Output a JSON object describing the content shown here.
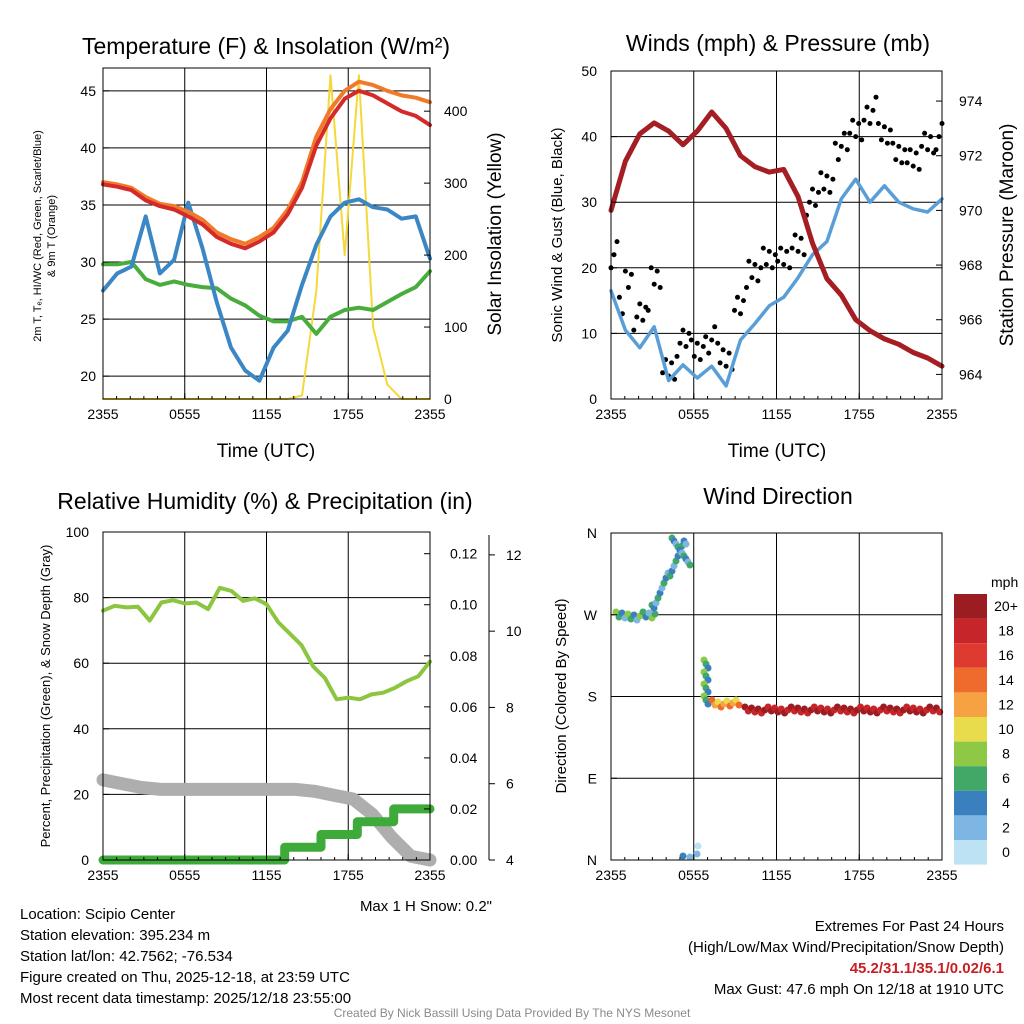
{
  "chart_data": [
    {
      "id": "temperature",
      "type": "line",
      "title": "Temperature (F) & Insolation (W/m²)",
      "xlabel": "Time (UTC)",
      "ylabel_lines": [
        "2m T, Tₑ, HI/WC (Red, Green, Scarlet/Blue)",
        "& 9m T (Orange)"
      ],
      "y2label": "Solar Insolation (Yellow)",
      "x_tick_labels": [
        "2355",
        "0555",
        "1155",
        "1755",
        "2355"
      ],
      "y_ticks": [
        20,
        25,
        30,
        35,
        40,
        45
      ],
      "y2_ticks": [
        0,
        100,
        200,
        300,
        400
      ],
      "ylim": [
        18,
        47
      ],
      "y2lim": [
        0,
        460
      ],
      "series": [
        {
          "name": "9m Temperature",
          "color": "#f07a2a",
          "axis": "left",
          "values": [
            37.0,
            36.8,
            36.5,
            35.7,
            35.1,
            34.9,
            34.4,
            33.7,
            32.6,
            32.0,
            31.6,
            32.2,
            33.0,
            34.6,
            37.0,
            41.0,
            43.4,
            45.0,
            45.8,
            45.5,
            45.0,
            44.6,
            44.4,
            44.0
          ]
        },
        {
          "name": "2m Temperature",
          "color": "#d42a2a",
          "axis": "left",
          "values": [
            36.8,
            36.6,
            36.3,
            35.4,
            34.9,
            34.6,
            34.0,
            33.3,
            32.2,
            31.6,
            31.2,
            31.8,
            32.6,
            34.2,
            36.5,
            40.2,
            42.6,
            44.3,
            45.0,
            44.6,
            43.9,
            43.2,
            42.8,
            42.0
          ]
        },
        {
          "name": "Wind Chill",
          "color": "#3b87c5",
          "axis": "left",
          "values": [
            27.5,
            29.0,
            29.6,
            34.0,
            29.0,
            30.2,
            35.2,
            31.2,
            26.5,
            22.5,
            20.5,
            19.6,
            22.5,
            24.0,
            28.0,
            31.5,
            34.0,
            35.2,
            35.5,
            34.8,
            34.6,
            33.8,
            34.0,
            30.3
          ]
        },
        {
          "name": "Dew Point",
          "color": "#48ad3d",
          "axis": "left",
          "values": [
            29.8,
            29.8,
            30.0,
            28.5,
            28.0,
            28.3,
            28.0,
            27.8,
            27.7,
            26.8,
            26.2,
            25.3,
            24.8,
            24.8,
            25.2,
            23.7,
            25.2,
            25.8,
            26.0,
            25.8,
            26.5,
            27.2,
            27.8,
            29.2
          ]
        },
        {
          "name": "Solar Insolation",
          "color": "#f5d83a",
          "axis": "right",
          "values": [
            0,
            0,
            0,
            0,
            0,
            0,
            0,
            0,
            0,
            0,
            0,
            0,
            0,
            0,
            5,
            150,
            450,
            200,
            450,
            100,
            20,
            0,
            0,
            0
          ]
        }
      ]
    },
    {
      "id": "winds",
      "type": "line",
      "title": "Winds (mph) & Pressure (mb)",
      "xlabel": "Time (UTC)",
      "ylabel": "Sonic Wind & Gust (Blue, Black)",
      "y2label": "Station Pressure (Maroon)",
      "x_tick_labels": [
        "2355",
        "0555",
        "1155",
        "1755",
        "2355"
      ],
      "y_ticks": [
        0,
        10,
        20,
        30,
        40,
        50
      ],
      "y2_ticks": [
        964,
        966,
        968,
        970,
        972,
        974
      ],
      "ylim": [
        0,
        50
      ],
      "y2lim": [
        963.1,
        975.1
      ],
      "series": [
        {
          "name": "Sonic Wind",
          "color": "#5a9ed8",
          "axis": "left",
          "values": [
            16.5,
            10.5,
            7.8,
            11.0,
            2.8,
            5.2,
            3.2,
            5.0,
            2.0,
            9.0,
            11.5,
            14.2,
            15.5,
            18.5,
            22.0,
            24.0,
            30.5,
            33.5,
            30.0,
            32.5,
            30.0,
            29.0,
            28.5,
            30.5
          ]
        },
        {
          "name": "Gust",
          "color": "#000000",
          "axis": "left",
          "values": [
            22.0,
            18.0,
            14.0,
            18.0,
            5.0,
            8.5,
            7.5,
            9.0,
            6.0,
            15.0,
            19.0,
            22.0,
            21.0,
            24.0,
            30.0,
            33.0,
            38.5,
            41.0,
            44.0,
            40.0,
            38.0,
            36.0,
            39.5,
            40.0
          ]
        },
        {
          "name": "Station Pressure",
          "color": "#a41e23",
          "axis": "right",
          "values": [
            970.0,
            971.8,
            972.8,
            973.2,
            972.9,
            972.4,
            972.9,
            973.6,
            973.0,
            972.0,
            971.6,
            971.4,
            971.5,
            970.5,
            968.8,
            967.5,
            966.9,
            966.0,
            965.6,
            965.3,
            965.1,
            964.8,
            964.6,
            964.3
          ]
        }
      ]
    },
    {
      "id": "humidity",
      "type": "line",
      "title": "Relative Humidity (%) & Precipitation (in)",
      "ylabel": "Percent, Precipitation (Green), & Snow Depth (Gray)",
      "x_tick_labels": [
        "2355",
        "0555",
        "1155",
        "1755",
        "2355"
      ],
      "y_ticks": [
        0,
        20,
        40,
        60,
        80,
        100
      ],
      "y2_ticks": [
        "0.00",
        "0.02",
        "0.04",
        "0.06",
        "0.08",
        "0.10",
        "0.12"
      ],
      "y3_ticks": [
        4,
        6,
        8,
        10,
        12
      ],
      "ylim": [
        0,
        100
      ],
      "series": [
        {
          "name": "Relative Humidity",
          "color": "#8cc640",
          "unit": "%",
          "values": [
            76.0,
            77.5,
            77.0,
            77.2,
            73.0,
            78.5,
            79.2,
            78.2,
            78.5,
            76.5,
            83.0,
            82.0,
            79.0,
            79.8,
            78.0,
            72.5,
            69.0,
            65.5,
            59.0,
            55.5,
            49.0,
            49.5,
            49.0,
            50.5,
            51.0,
            52.5,
            54.5,
            56.0,
            60.5
          ]
        },
        {
          "name": "Precipitation",
          "color": "#3daa3a",
          "unit": "in",
          "values": [
            0,
            0,
            0,
            0,
            0,
            0,
            0,
            0,
            0,
            0,
            0.005,
            0.005,
            0.01,
            0.01,
            0.015,
            0.015,
            0.02,
            0.02
          ]
        },
        {
          "name": "Snow Depth",
          "color": "#aeaeae",
          "unit": "in",
          "values": [
            6.1,
            6.0,
            5.9,
            5.85,
            5.85,
            5.85,
            5.85,
            5.85,
            5.85,
            5.85,
            5.85,
            5.8,
            5.7,
            5.6,
            5.2,
            4.6,
            4.1,
            4.0
          ]
        }
      ],
      "annotation": "Max 1 H Snow: 0.2\""
    },
    {
      "id": "wind_direction",
      "type": "scatter",
      "title": "Wind Direction",
      "ylabel": "Direction (Colored By Speed)",
      "x_tick_labels": [
        "2355",
        "0555",
        "1155",
        "1755",
        "2355"
      ],
      "y_tick_labels": [
        "N",
        "W",
        "S",
        "E",
        "N"
      ],
      "colorbar_unit": "mph",
      "colorbar_labels": [
        "20+",
        "18",
        "16",
        "14",
        "12",
        "10",
        "8",
        "6",
        "4",
        "2",
        "0"
      ],
      "colorbar_colors": [
        "#9b1d21",
        "#c6252a",
        "#de3a2f",
        "#ee6b2d",
        "#f6a142",
        "#e9dc4c",
        "#8ec945",
        "#41a868",
        "#3a80bf",
        "#7eb6e3",
        "#bde2f4"
      ]
    }
  ],
  "footer": {
    "location": "Location: Scipio Center",
    "elevation": "Station elevation: 395.234 m",
    "latlon": "Station lat/lon: 42.7562; -76.534",
    "created": "Figure created on Thu, 2025-12-18, at 23:59 UTC",
    "recent": "Most recent data timestamp: 2025/12/18 23:55:00",
    "extremes_title": "Extremes For Past 24 Hours",
    "extremes_fields": "(High/Low/Max Wind/Precipitation/Snow Depth)",
    "extremes_values": "45.2/31.1/35.1/0.02/6.1",
    "max_gust": "Max Gust: 47.6 mph On 12/18 at 1910 UTC",
    "credit": "Created By Nick Bassill Using Data Provided By The NYS Mesonet"
  }
}
